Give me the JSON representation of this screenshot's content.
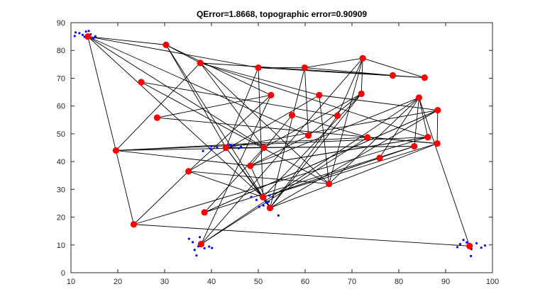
{
  "chart_data": {
    "type": "scatter",
    "title": "QError=1.8668, topographic error=0.90909",
    "xlabel": "",
    "ylabel": "",
    "xlim": [
      10,
      100
    ],
    "ylim": [
      0,
      90
    ],
    "x_ticks": [
      10,
      20,
      30,
      40,
      50,
      60,
      70,
      80,
      90,
      100
    ],
    "y_ticks": [
      0,
      10,
      20,
      30,
      40,
      50,
      60,
      70,
      80,
      90
    ],
    "x_tick_labels": [
      "10",
      "20",
      "30",
      "40",
      "50",
      "60",
      "70",
      "80",
      "90",
      "100"
    ],
    "y_tick_labels": [
      "0",
      "10",
      "20",
      "30",
      "40",
      "50",
      "60",
      "70",
      "80",
      "90"
    ],
    "grid": false,
    "legend": "none",
    "colors": {
      "samples": "#0000ff",
      "nodes": "#ff0000",
      "edges": "#000000",
      "axes": "#262626"
    },
    "samples": [
      [
        11.0,
        86.5
      ],
      [
        11.8,
        86.2
      ],
      [
        10.8,
        85.2
      ],
      [
        12.5,
        85.6
      ],
      [
        13.2,
        86.8
      ],
      [
        13.8,
        87.0
      ],
      [
        14.2,
        85.8
      ],
      [
        14.8,
        84.5
      ],
      [
        15.2,
        85.1
      ],
      [
        12.9,
        84.9
      ],
      [
        35.2,
        12.2
      ],
      [
        36.0,
        11.0
      ],
      [
        37.5,
        12.8
      ],
      [
        38.2,
        10.2
      ],
      [
        39.5,
        9.4
      ],
      [
        40.1,
        8.9
      ],
      [
        38.5,
        8.8
      ],
      [
        37.2,
        9.5
      ],
      [
        36.4,
        8.2
      ],
      [
        36.8,
        6.2
      ],
      [
        38.2,
        43.8
      ],
      [
        40.0,
        45.5
      ],
      [
        41.2,
        45.0
      ],
      [
        42.8,
        44.2
      ],
      [
        44.1,
        46.0
      ],
      [
        44.9,
        45.8
      ],
      [
        45.8,
        44.8
      ],
      [
        46.3,
        45.3
      ],
      [
        39.8,
        44.6
      ],
      [
        43.7,
        45.9
      ],
      [
        48.5,
        27.3
      ],
      [
        49.6,
        26.2
      ],
      [
        50.8,
        27.0
      ],
      [
        51.7,
        25.2
      ],
      [
        52.4,
        27.8
      ],
      [
        53.1,
        27.3
      ],
      [
        52.2,
        25.6
      ],
      [
        51.1,
        24.2
      ],
      [
        54.3,
        20.6
      ],
      [
        50.2,
        23.7
      ],
      [
        92.5,
        9.2
      ],
      [
        93.1,
        10.3
      ],
      [
        93.8,
        11.8
      ],
      [
        94.5,
        10.9
      ],
      [
        95.1,
        9.3
      ],
      [
        95.5,
        8.5
      ],
      [
        95.4,
        6.0
      ],
      [
        96.6,
        10.6
      ],
      [
        97.6,
        9.0
      ],
      [
        98.4,
        9.8
      ]
    ],
    "nodes": [
      [
        13.6,
        85.0
      ],
      [
        30.3,
        82.0
      ],
      [
        37.6,
        75.5
      ],
      [
        50.0,
        73.8
      ],
      [
        59.9,
        73.8
      ],
      [
        72.3,
        77.2
      ],
      [
        78.7,
        71.0
      ],
      [
        85.5,
        70.2
      ],
      [
        25.0,
        68.6
      ],
      [
        52.7,
        63.9
      ],
      [
        63.0,
        63.9
      ],
      [
        72.0,
        64.4
      ],
      [
        84.3,
        63.0
      ],
      [
        88.3,
        58.5
      ],
      [
        28.4,
        55.8
      ],
      [
        57.2,
        56.7
      ],
      [
        66.9,
        56.5
      ],
      [
        60.7,
        49.4
      ],
      [
        73.3,
        48.7
      ],
      [
        86.2,
        48.8
      ],
      [
        88.2,
        46.5
      ],
      [
        83.3,
        45.5
      ],
      [
        19.6,
        44.0
      ],
      [
        43.1,
        45.0
      ],
      [
        51.2,
        45.0
      ],
      [
        75.9,
        41.3
      ],
      [
        48.3,
        38.5
      ],
      [
        35.1,
        36.5
      ],
      [
        65.1,
        32.0
      ],
      [
        51.0,
        27.2
      ],
      [
        52.5,
        23.3
      ],
      [
        38.5,
        21.7
      ],
      [
        23.4,
        17.4
      ],
      [
        37.8,
        10.3
      ],
      [
        95.1,
        9.6
      ]
    ],
    "edges": [
      [
        0,
        1
      ],
      [
        0,
        22
      ],
      [
        0,
        29
      ],
      [
        0,
        3
      ],
      [
        0,
        24
      ],
      [
        0,
        17
      ],
      [
        1,
        2
      ],
      [
        1,
        9
      ],
      [
        1,
        23
      ],
      [
        1,
        30
      ],
      [
        2,
        22
      ],
      [
        2,
        10
      ],
      [
        2,
        6
      ],
      [
        2,
        19
      ],
      [
        2,
        28
      ],
      [
        2,
        24
      ],
      [
        3,
        4
      ],
      [
        3,
        7
      ],
      [
        3,
        23
      ],
      [
        3,
        29
      ],
      [
        4,
        5
      ],
      [
        4,
        6
      ],
      [
        4,
        30
      ],
      [
        4,
        17
      ],
      [
        5,
        7
      ],
      [
        5,
        28
      ],
      [
        5,
        33
      ],
      [
        5,
        16
      ],
      [
        6,
        7
      ],
      [
        8,
        16
      ],
      [
        8,
        28
      ],
      [
        9,
        27
      ],
      [
        9,
        33
      ],
      [
        10,
        28
      ],
      [
        10,
        13
      ],
      [
        10,
        27
      ],
      [
        11,
        29
      ],
      [
        11,
        30
      ],
      [
        11,
        24
      ],
      [
        11,
        5
      ],
      [
        12,
        34
      ],
      [
        12,
        25
      ],
      [
        12,
        26
      ],
      [
        13,
        31
      ],
      [
        13,
        23
      ],
      [
        14,
        20
      ],
      [
        14,
        9
      ],
      [
        15,
        18
      ],
      [
        15,
        26
      ],
      [
        16,
        30
      ],
      [
        17,
        26
      ],
      [
        17,
        11
      ],
      [
        18,
        22
      ],
      [
        18,
        33
      ],
      [
        18,
        20
      ],
      [
        19,
        26
      ],
      [
        19,
        32
      ],
      [
        19,
        12
      ],
      [
        20,
        29
      ],
      [
        20,
        13
      ],
      [
        20,
        30
      ],
      [
        21,
        29
      ],
      [
        21,
        24
      ],
      [
        21,
        12
      ],
      [
        22,
        19
      ],
      [
        22,
        32
      ],
      [
        22,
        26
      ],
      [
        22,
        24
      ],
      [
        23,
        29
      ],
      [
        23,
        21
      ],
      [
        23,
        30
      ],
      [
        24,
        31
      ],
      [
        25,
        35
      ],
      [
        26,
        30
      ],
      [
        26,
        19
      ],
      [
        27,
        28
      ],
      [
        27,
        29
      ],
      [
        27,
        32
      ],
      [
        28,
        12
      ],
      [
        28,
        35
      ],
      [
        29,
        25
      ],
      [
        30,
        13
      ],
      [
        31,
        13
      ],
      [
        31,
        21
      ],
      [
        32,
        34
      ],
      [
        33,
        12
      ]
    ]
  }
}
